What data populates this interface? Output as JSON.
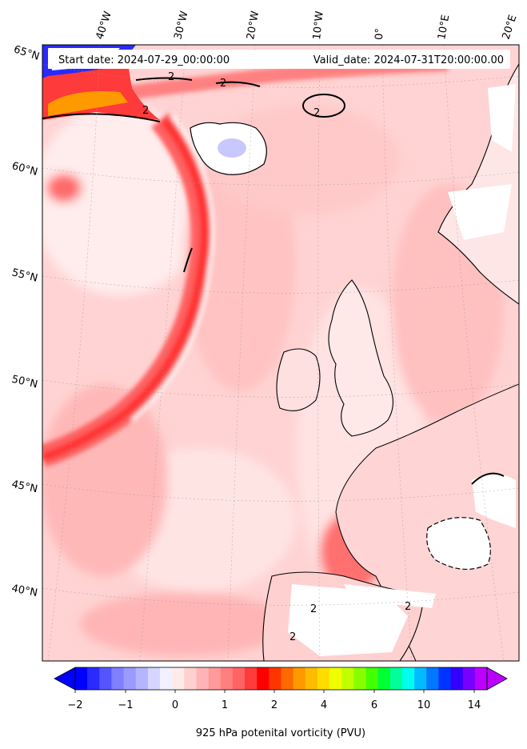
{
  "header": {
    "start_date": "Start date: 2024-07-29_00:00:00",
    "valid_date": "Valid_date: 2024-07-31T20:00:00.00"
  },
  "map": {
    "lat_labels": [
      "65°N",
      "60°N",
      "55°N",
      "50°N",
      "45°N",
      "40°N"
    ],
    "lon_labels": [
      "40°W",
      "30°W",
      "20°W",
      "10°W",
      "0°",
      "10°E",
      "20°E"
    ],
    "contour_label": "2",
    "colors": {
      "background_field": "#ffd6d6",
      "light_field": "#ffeaea",
      "mid_field": "#ff9e9e",
      "strong_field": "#ff4d4d",
      "peak_field": "#ff8c00",
      "land_blank": "#ffffff",
      "coast": "#000000"
    }
  },
  "colorbar": {
    "label": "925 hPa potenital vorticity (PVU)",
    "tick_labels": [
      "−2",
      "−1",
      "0",
      "1",
      "2",
      "4",
      "6",
      "10",
      "14"
    ],
    "colors": [
      "#0000ff",
      "#2a2aff",
      "#5555ff",
      "#7f7fff",
      "#9a9aff",
      "#b5b5ff",
      "#d5d5ff",
      "#f1f1ff",
      "#ffeaea",
      "#ffd0d0",
      "#ffb5b5",
      "#ff9a9a",
      "#ff7f7f",
      "#ff6464",
      "#ff3a3a",
      "#ff0000",
      "#ff3500",
      "#ff6a00",
      "#ff9900",
      "#ffbb00",
      "#ffdd00",
      "#eeff00",
      "#c0ff00",
      "#88ff00",
      "#44ff00",
      "#00ff33",
      "#00ff99",
      "#00ffee",
      "#00bbff",
      "#0077ff",
      "#0033ff",
      "#3300ff",
      "#7700ff",
      "#bb00ff"
    ]
  }
}
